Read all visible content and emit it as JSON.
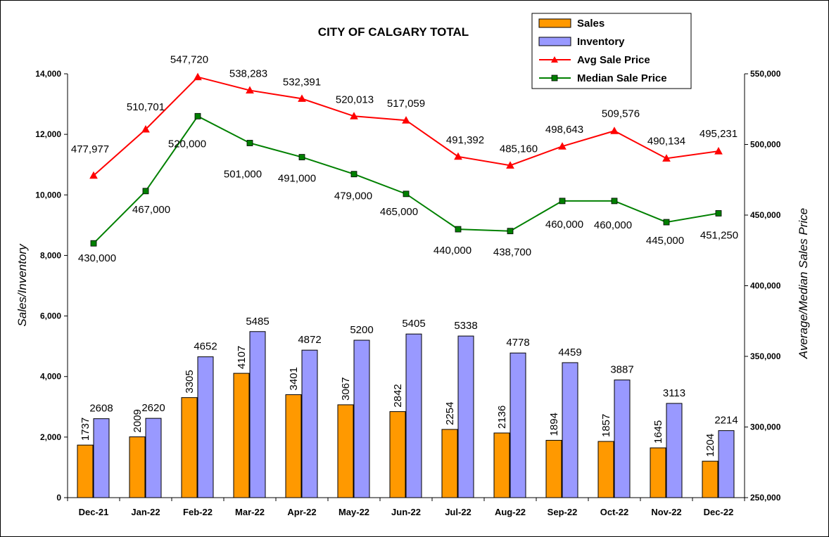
{
  "chart_data": {
    "type": "bar",
    "title": "CITY OF CALGARY TOTAL",
    "ylabel": "Sales/Inventory",
    "y2label": "Average/Median Sales Price",
    "categories": [
      "Dec-21",
      "Jan-22",
      "Feb-22",
      "Mar-22",
      "Apr-22",
      "May-22",
      "Jun-22",
      "Jul-22",
      "Aug-22",
      "Sep-22",
      "Oct-22",
      "Nov-22",
      "Dec-22"
    ],
    "ylim": [
      0,
      14000
    ],
    "yticks": [
      "0",
      "2,000",
      "4,000",
      "6,000",
      "8,000",
      "10,000",
      "12,000",
      "14,000"
    ],
    "y2lim": [
      250000,
      550000
    ],
    "y2ticks": [
      "250,000",
      "300,000",
      "350,000",
      "400,000",
      "450,000",
      "500,000",
      "550,000"
    ],
    "legend_position": "top-right",
    "grid": false,
    "series": [
      {
        "name": "Sales",
        "type": "bar",
        "axis": "left",
        "color": "#FF9900",
        "values": [
          1737,
          2009,
          3305,
          4107,
          3401,
          3067,
          2842,
          2254,
          2136,
          1894,
          1857,
          1645,
          1204
        ],
        "labels": [
          "1737",
          "2009",
          "3305",
          "4107",
          "3401",
          "3067",
          "2842",
          "2254",
          "2136",
          "1894",
          "1857",
          "1645",
          "1204"
        ]
      },
      {
        "name": "Inventory",
        "type": "bar",
        "axis": "left",
        "color": "#9999FF",
        "values": [
          2608,
          2620,
          4652,
          5485,
          4872,
          5200,
          5405,
          5338,
          4778,
          4459,
          3887,
          3113,
          2214
        ],
        "labels": [
          "2608",
          "2620",
          "4652",
          "5485",
          "4872",
          "5200",
          "5405",
          "5338",
          "4778",
          "4459",
          "3887",
          "3113",
          "2214"
        ]
      },
      {
        "name": "Avg Sale Price",
        "type": "line",
        "axis": "right",
        "color": "#FF0000",
        "marker": "triangle",
        "values": [
          477977,
          510701,
          547720,
          538283,
          532391,
          520013,
          517059,
          491392,
          485160,
          498643,
          509576,
          490134,
          495231
        ],
        "labels": [
          "477,977",
          "510,701",
          "547,720",
          "538,283",
          "532,391",
          "520,013",
          "517,059",
          "491,392",
          "485,160",
          "498,643",
          "509,576",
          "490,134",
          "495,231"
        ]
      },
      {
        "name": "Median Sale Price",
        "type": "line",
        "axis": "right",
        "color": "#008000",
        "marker": "square",
        "values": [
          430000,
          467000,
          520000,
          501000,
          491000,
          479000,
          465000,
          440000,
          438700,
          460000,
          460000,
          445000,
          451250
        ],
        "labels": [
          "430,000",
          "467,000",
          "520,000",
          "501,000",
          "491,000",
          "479,000",
          "465,000",
          "440,000",
          "438,700",
          "460,000",
          "460,000",
          "445,000",
          "451,250"
        ]
      }
    ]
  }
}
